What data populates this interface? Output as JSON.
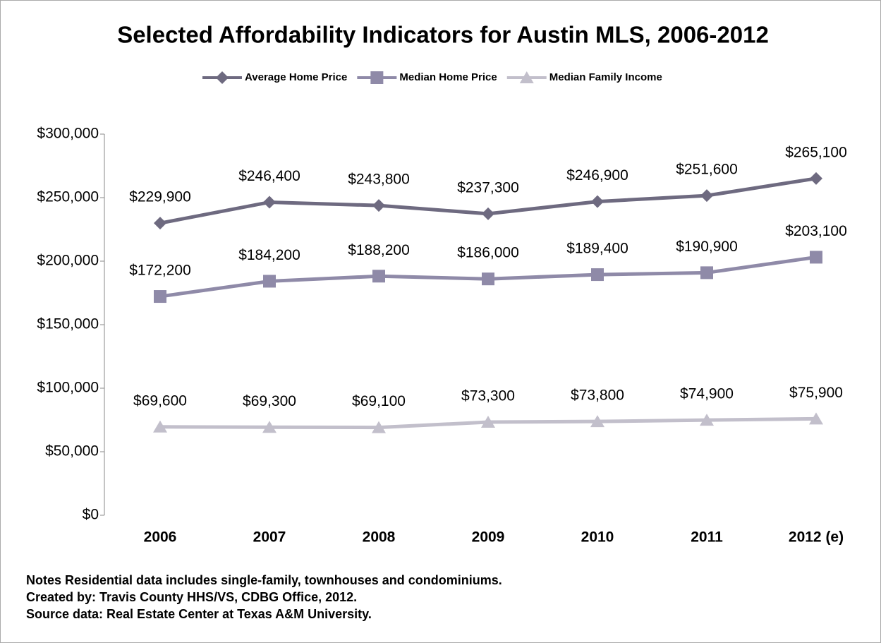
{
  "chart_data": {
    "type": "line",
    "title": "Selected Affordability Indicators for Austin MLS, 2006-2012",
    "categories": [
      "2006",
      "2007",
      "2008",
      "2009",
      "2010",
      "2011",
      "2012 (e)"
    ],
    "series": [
      {
        "name": "Average Home Price",
        "color": "#6e6a80",
        "marker": "diamond",
        "values": [
          229900,
          246400,
          243800,
          237300,
          246900,
          251600,
          265100
        ],
        "value_labels": [
          "$229,900",
          "$246,400",
          "$243,800",
          "$237,300",
          "$246,900",
          "$251,600",
          "$265,100"
        ]
      },
      {
        "name": "Median Home Price",
        "color": "#8f8aa8",
        "marker": "square",
        "values": [
          172200,
          184200,
          188200,
          186000,
          189400,
          190900,
          203100
        ],
        "value_labels": [
          "$172,200",
          "$184,200",
          "$188,200",
          "$186,000",
          "$189,400",
          "$190,900",
          "$203,100"
        ]
      },
      {
        "name": "Median Family Income",
        "color": "#c2bfcb",
        "marker": "triangle",
        "values": [
          69600,
          69300,
          69100,
          73300,
          73800,
          74900,
          75900
        ],
        "value_labels": [
          "$69,600",
          "$69,300",
          "$69,100",
          "$73,300",
          "$73,800",
          "$74,900",
          "$75,900"
        ]
      }
    ],
    "ylim": [
      0,
      300000
    ],
    "yticks": [
      {
        "value": 0,
        "label": "$0"
      },
      {
        "value": 50000,
        "label": "$50,000"
      },
      {
        "value": 100000,
        "label": "$100,000"
      },
      {
        "value": 150000,
        "label": "$150,000"
      },
      {
        "value": 200000,
        "label": "$200,000"
      },
      {
        "value": 250000,
        "label": "$250,000"
      },
      {
        "value": 300000,
        "label": "$300,000"
      }
    ],
    "legend": "top",
    "notes": [
      "Notes Residential data includes single-family, townhouses and condominiums.",
      "Created by: Travis County HHS/VS, CDBG Office, 2012.",
      "Source data:  Real Estate Center at Texas A&M University."
    ]
  }
}
